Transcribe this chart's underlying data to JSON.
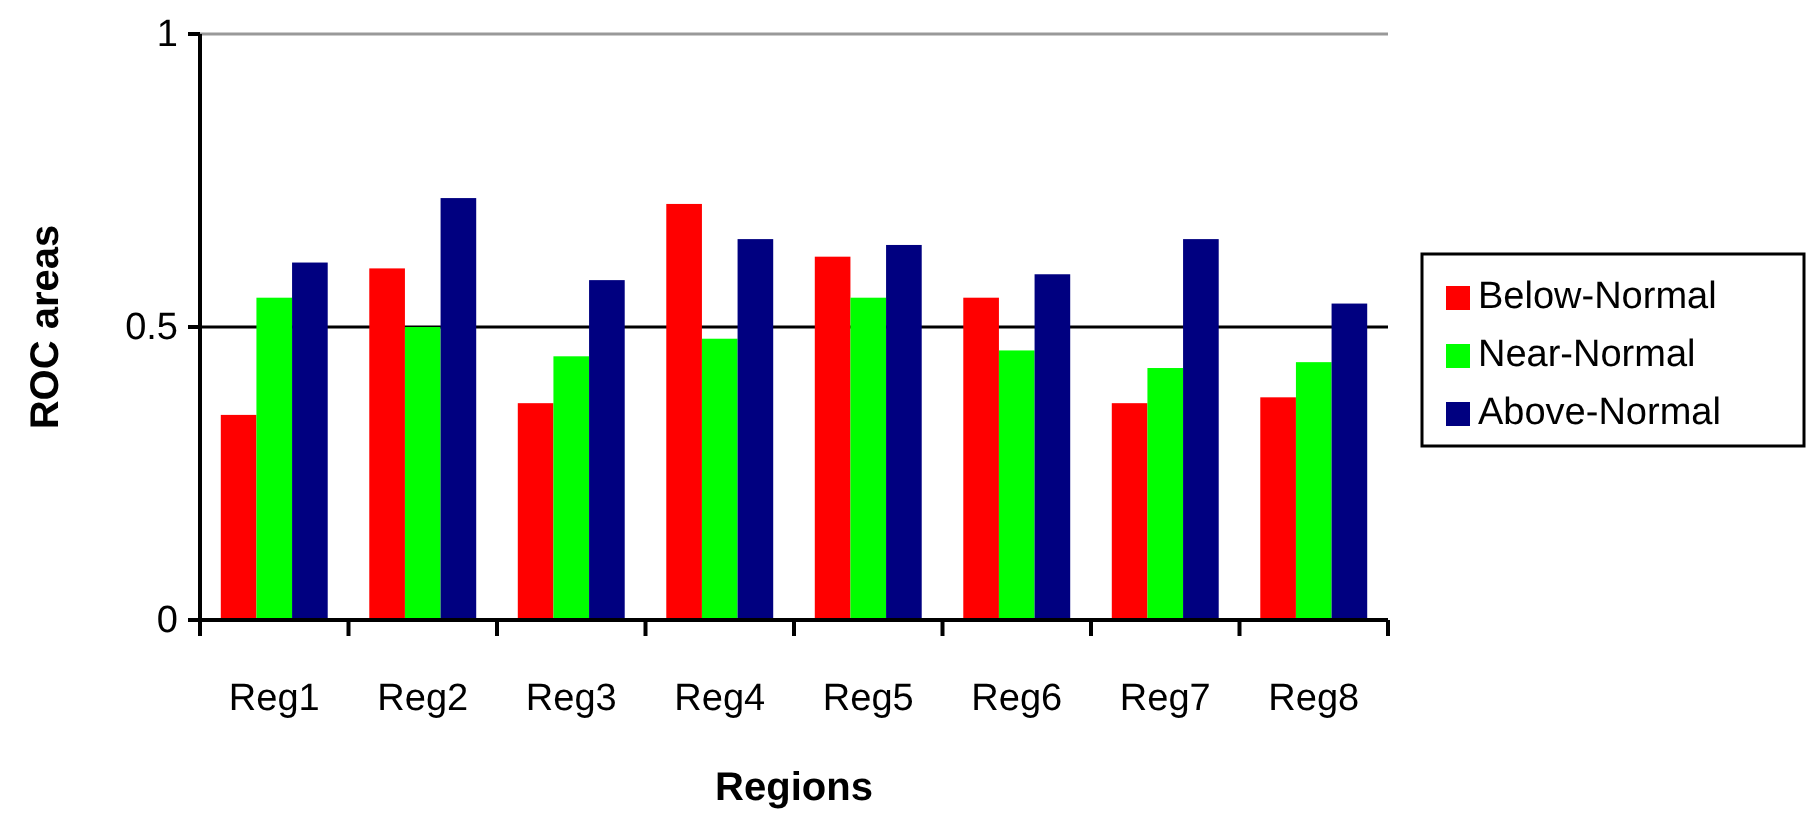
{
  "chart_data": {
    "type": "bar",
    "xlabel": "Regions",
    "ylabel": "ROC areas",
    "categories": [
      "Reg1",
      "Reg2",
      "Reg3",
      "Reg4",
      "Reg5",
      "Reg6",
      "Reg7",
      "Reg8"
    ],
    "series": [
      {
        "name": "Below-Normal",
        "color": "#ff0000",
        "values": [
          0.35,
          0.6,
          0.37,
          0.71,
          0.62,
          0.55,
          0.37,
          0.38
        ]
      },
      {
        "name": "Near-Normal",
        "color": "#00ff00",
        "values": [
          0.55,
          0.5,
          0.45,
          0.48,
          0.55,
          0.46,
          0.43,
          0.44
        ]
      },
      {
        "name": "Above-Normal",
        "color": "#000080",
        "values": [
          0.61,
          0.72,
          0.58,
          0.65,
          0.64,
          0.59,
          0.65,
          0.54
        ]
      }
    ],
    "ylim": [
      0,
      1
    ],
    "yticks": [
      0,
      0.5,
      1
    ],
    "grid": "y",
    "legend": "right"
  }
}
